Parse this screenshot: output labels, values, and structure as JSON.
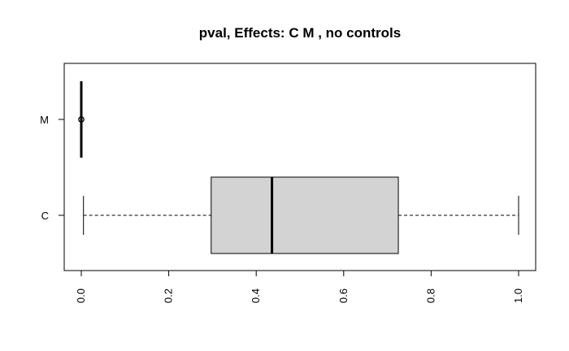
{
  "chart_data": {
    "type": "boxplot",
    "orientation": "horizontal",
    "title": "pval, Effects: C M  , no controls",
    "xlim": [
      0,
      1
    ],
    "x_ticks": [
      0.0,
      0.2,
      0.4,
      0.6,
      0.8,
      1.0
    ],
    "x_tick_labels": [
      "0.0",
      "0.2",
      "0.4",
      "0.6",
      "0.8",
      "1.0"
    ],
    "categories": [
      "C",
      "M"
    ],
    "boxes": [
      {
        "category": "C",
        "whisker_low": 0.005,
        "q1": 0.297,
        "median": 0.436,
        "q3": 0.725,
        "whisker_high": 1.0,
        "outliers": []
      },
      {
        "category": "M",
        "whisker_low": 0.0,
        "q1": 0.0,
        "median": 0.0,
        "q3": 0.0,
        "whisker_high": 0.0,
        "outliers": [
          0.0
        ]
      }
    ],
    "box_fill": "#d3d3d3",
    "line_color": "#000000",
    "grid": false,
    "legend": "none"
  }
}
